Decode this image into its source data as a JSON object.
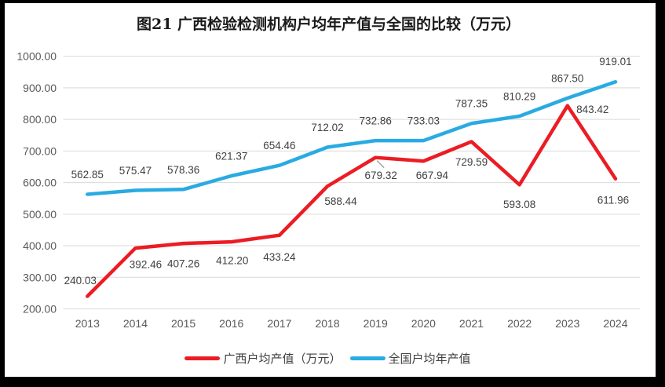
{
  "chart_data": {
    "type": "line",
    "title": "图21 广西检验检测机构户均年产值与全国的比较（万元）",
    "categories": [
      "2013",
      "2014",
      "2015",
      "2016",
      "2017",
      "2018",
      "2019",
      "2020",
      "2021",
      "2022",
      "2023",
      "2024"
    ],
    "series": [
      {
        "name": "广西户均产值（万元）",
        "color": "#EC1C24",
        "values": [
          240.03,
          392.46,
          407.26,
          412.2,
          433.24,
          588.44,
          679.32,
          667.94,
          729.59,
          593.08,
          843.42,
          611.96
        ],
        "label_offsets": [
          [
            -9,
            -20
          ],
          [
            13,
            21
          ],
          [
            0,
            26
          ],
          [
            1,
            24
          ],
          [
            0,
            28
          ],
          [
            17,
            19
          ],
          [
            7,
            23
          ],
          [
            11,
            18
          ],
          [
            0,
            26
          ],
          [
            0,
            25
          ],
          [
            32,
            5
          ],
          [
            -3,
            27
          ]
        ]
      },
      {
        "name": "全国户均年产值",
        "color": "#29ABE2",
        "values": [
          562.85,
          575.47,
          578.36,
          621.37,
          654.46,
          712.02,
          732.86,
          733.03,
          787.35,
          810.29,
          867.5,
          919.01
        ],
        "label_offsets": [
          [
            0,
            -25
          ],
          [
            0,
            -25
          ],
          [
            0,
            -25
          ],
          [
            0,
            -25
          ],
          [
            0,
            -25
          ],
          [
            0,
            -25
          ],
          [
            0,
            -25
          ],
          [
            0,
            -25
          ],
          [
            0,
            -25
          ],
          [
            0,
            -25
          ],
          [
            0,
            -25
          ],
          [
            0,
            -26
          ]
        ]
      }
    ],
    "ylim": [
      200,
      1000
    ],
    "ytick_step": 100,
    "ytick_decimals": 2,
    "value_decimals": 2,
    "grid": true,
    "legend_position": "bottom",
    "callout": {
      "series_index": 0,
      "point_index": 6
    }
  },
  "colors": {
    "grid": "#D9D9D9",
    "axis_text": "#595959",
    "data_label_text": "#404040",
    "legend_text": "#3F3F3F",
    "title_text": "#1A1A1A",
    "callout_line": "#A6A6A6",
    "frame": "#000000",
    "background": "#FFFFFF"
  }
}
